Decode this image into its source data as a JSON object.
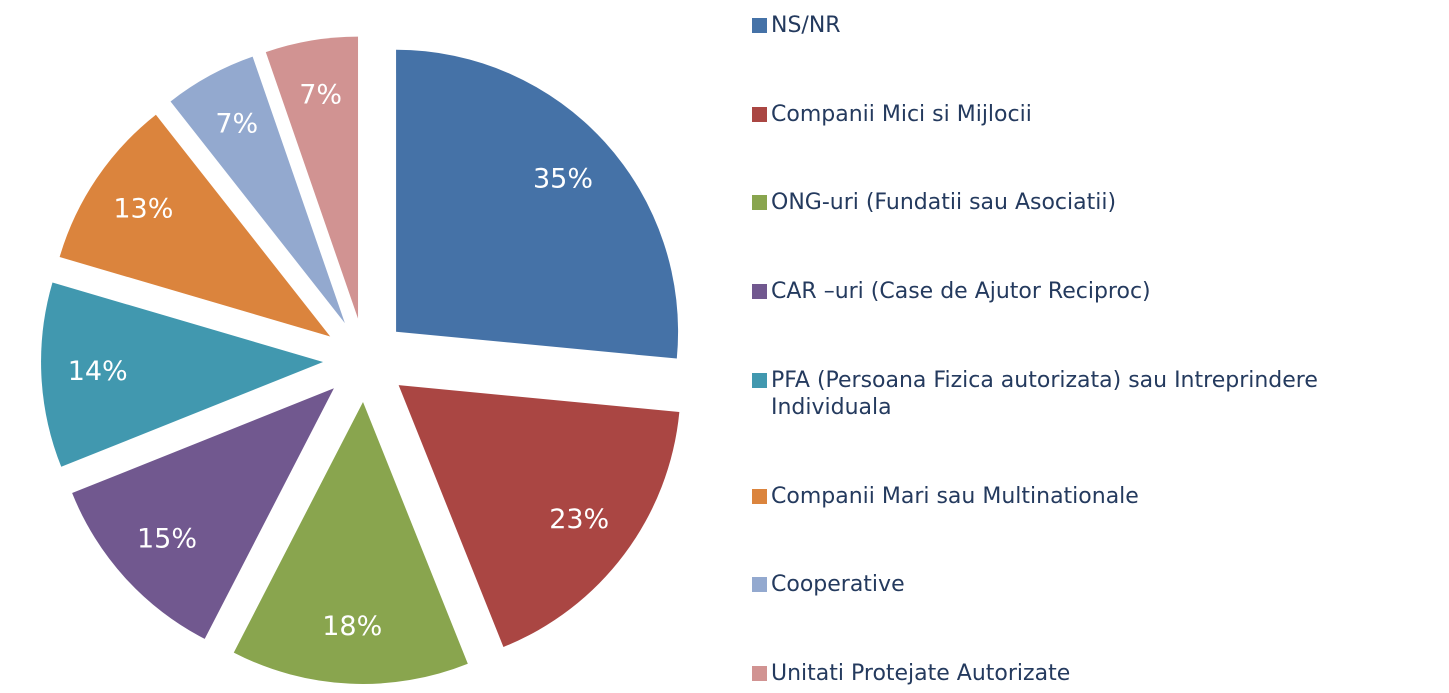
{
  "chart_data": {
    "type": "pie",
    "categories": [
      "NS/NR",
      "Companii Mici si Mijlocii",
      "ONG-uri (Fundatii sau Asociatii)",
      "CAR –uri (Case de Ajutor Reciproc)",
      "PFA (Persoana Fizica autorizata) sau Intreprindere Individuala",
      "Companii Mari sau Multinationale",
      "Cooperative",
      "Unitati Protejate Autorizate"
    ],
    "values": [
      35,
      23,
      18,
      15,
      14,
      13,
      7,
      7
    ],
    "value_labels": [
      "35%",
      "23%",
      "18%",
      "15%",
      "14%",
      "13%",
      "7%",
      "7%"
    ],
    "colors": [
      "#4572a7",
      "#aa4643",
      "#89a54e",
      "#71588f",
      "#4198af",
      "#db843d",
      "#93a9cf",
      "#d19392"
    ],
    "legend": "right"
  }
}
